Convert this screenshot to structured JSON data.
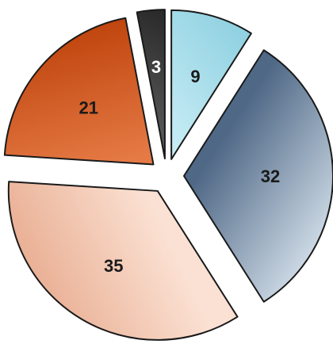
{
  "chart_data": {
    "type": "pie",
    "title": "",
    "exploded": true,
    "legend": "none",
    "start_angle_deg": -90,
    "direction": "clockwise",
    "slices": [
      {
        "label": "9",
        "value": 9,
        "color": "#a9dde9",
        "gradient": [
          "#c6ecf5",
          "#8ccfe0"
        ]
      },
      {
        "label": "32",
        "value": 32,
        "color": "#5a7391",
        "gradient": [
          "#4f6886",
          "#c9d6e2"
        ]
      },
      {
        "label": "35",
        "value": 35,
        "color": "#f3c7b2",
        "gradient": [
          "#fbe1d3",
          "#eab196"
        ]
      },
      {
        "label": "21",
        "value": 21,
        "color": "#d4551f",
        "gradient": [
          "#e57a45",
          "#c1460f"
        ]
      },
      {
        "label": "3",
        "value": 3,
        "color": "#3a3a3a",
        "gradient": [
          "#5a5a5a",
          "#222222"
        ]
      }
    ]
  }
}
